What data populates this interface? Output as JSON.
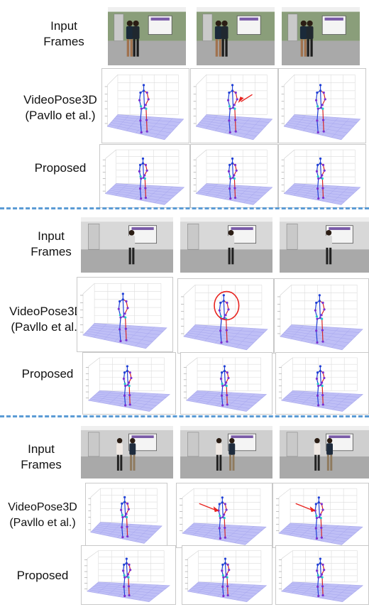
{
  "labels": {
    "input_frames_line1": "Input",
    "input_frames_line2": "Frames",
    "baseline_line1": "VideoPose3D",
    "baseline_line2": "(Pavllo et al.)",
    "proposed": "Proposed"
  },
  "colors": {
    "divider": "#5b9bd5",
    "floor": "#b4b4f5",
    "annotation": "#e8231f",
    "left_limb": "#1f3fd6",
    "right_limb": "#d62424",
    "joint": "#7a2fd0",
    "accent_joint": "#23c7c7"
  },
  "sections": [
    {
      "background_wall": "#8a9e7a",
      "baseline_annotations": [
        "none",
        "arrow",
        "none"
      ]
    },
    {
      "background_wall": "#d8d8d8",
      "baseline_annotations": [
        "none",
        "circle",
        "none"
      ]
    },
    {
      "background_wall": "#cfcfcf",
      "baseline_annotations": [
        "none",
        "arrow",
        "arrow"
      ]
    }
  ]
}
